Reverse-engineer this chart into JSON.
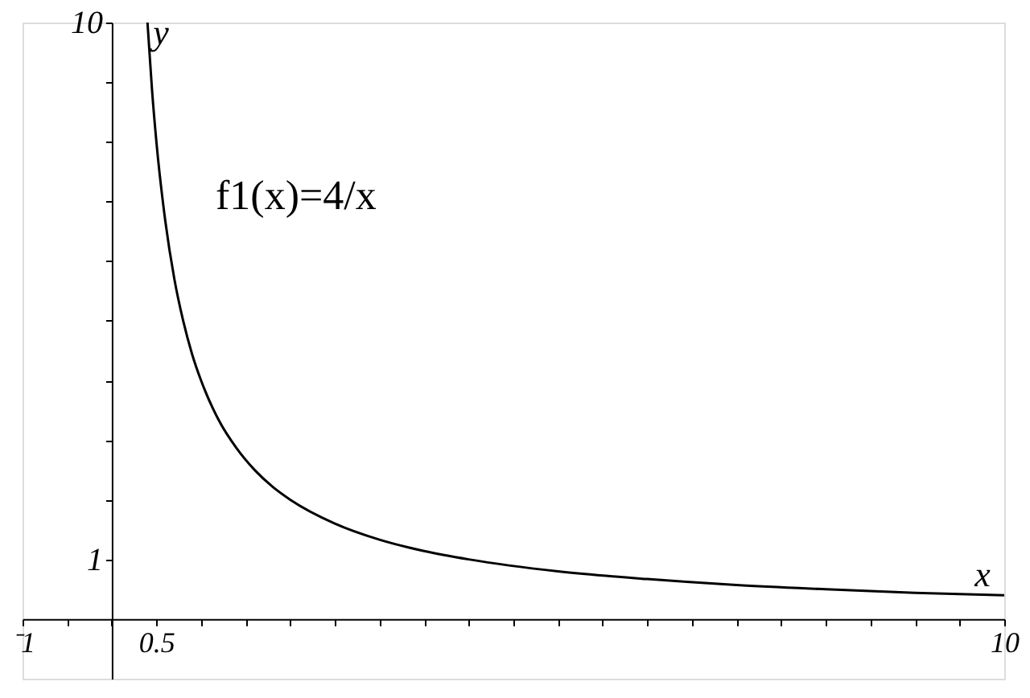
{
  "chart_data": {
    "type": "line",
    "xlabel": "x",
    "ylabel": "y",
    "annotations": [
      "f1(x)=4/x"
    ],
    "x": [
      0.4,
      0.45,
      0.5,
      0.6,
      0.7,
      0.8,
      0.9,
      1,
      1.2,
      1.4,
      1.6,
      1.8,
      2,
      2.5,
      3,
      3.5,
      4,
      5,
      6,
      7,
      8,
      9,
      10
    ],
    "series": [
      {
        "color": "#000000",
        "values": [
          10,
          8.89,
          8,
          6.67,
          5.71,
          5,
          4.44,
          4,
          3.33,
          2.86,
          2.5,
          2.22,
          2,
          1.6,
          1.33,
          1.14,
          1,
          0.8,
          0.67,
          0.57,
          0.5,
          0.44,
          0.4
        ]
      }
    ],
    "xlim": [
      -1,
      10
    ],
    "ylim": [
      -1,
      10
    ],
    "xticks": [
      {
        "value": -1,
        "label": "⁻1"
      },
      {
        "value": -0.5,
        "label": null
      },
      {
        "value": 0,
        "label": null
      },
      {
        "value": 0.5,
        "label": "0.5"
      },
      {
        "value": 1,
        "label": null
      },
      {
        "value": 1.5,
        "label": null
      },
      {
        "value": 2,
        "label": null
      },
      {
        "value": 2.5,
        "label": null
      },
      {
        "value": 3,
        "label": null
      },
      {
        "value": 3.5,
        "label": null
      },
      {
        "value": 4,
        "label": null
      },
      {
        "value": 4.5,
        "label": null
      },
      {
        "value": 5,
        "label": null
      },
      {
        "value": 5.5,
        "label": null
      },
      {
        "value": 6,
        "label": null
      },
      {
        "value": 6.5,
        "label": null
      },
      {
        "value": 7,
        "label": null
      },
      {
        "value": 7.5,
        "label": null
      },
      {
        "value": 8,
        "label": null
      },
      {
        "value": 8.5,
        "label": null
      },
      {
        "value": 9,
        "label": null
      },
      {
        "value": 9.5,
        "label": null
      },
      {
        "value": 10,
        "label": "10"
      }
    ],
    "yticks": [
      {
        "value": 1,
        "label": "1"
      },
      {
        "value": 2,
        "label": null
      },
      {
        "value": 3,
        "label": null
      },
      {
        "value": 4,
        "label": null
      },
      {
        "value": 5,
        "label": null
      },
      {
        "value": 6,
        "label": null
      },
      {
        "value": 7,
        "label": null
      },
      {
        "value": 8,
        "label": null
      },
      {
        "value": 9,
        "label": null
      },
      {
        "value": 10,
        "label": "10"
      }
    ],
    "grid": false,
    "marker": "none",
    "line_style": "solid"
  }
}
